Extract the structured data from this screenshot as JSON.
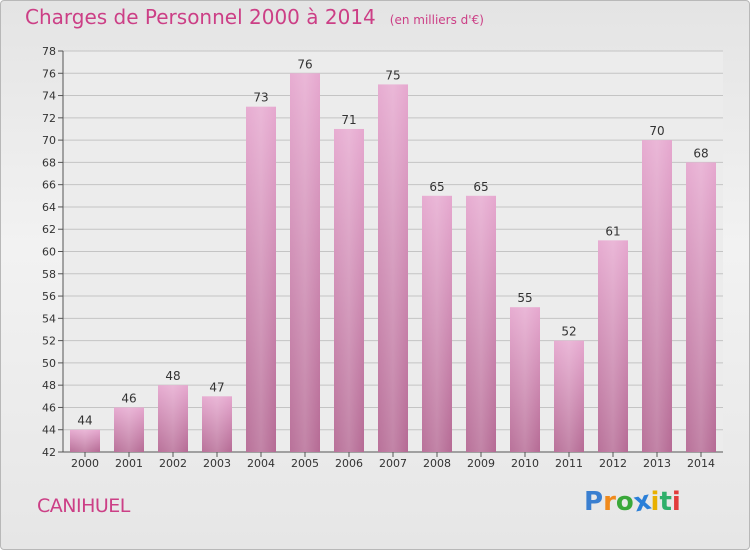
{
  "title": "Charges de Personnel 2000 à 2014",
  "unit_note": "(en milliers d'€)",
  "commune": "CANIHUEL",
  "logo": {
    "letters": [
      "P",
      "r",
      "o",
      "x",
      "i",
      "t",
      "i"
    ],
    "colors": [
      "#3a7fd0",
      "#f08a1c",
      "#3aa83a",
      "#2a7fd8",
      "#e8b000",
      "#2faf6a",
      "#e23c3c"
    ]
  },
  "colors": {
    "bar": "#d690bb",
    "accent": "#cc3f86"
  },
  "chart_data": {
    "type": "bar",
    "categories": [
      "2000",
      "2001",
      "2002",
      "2003",
      "2004",
      "2005",
      "2006",
      "2007",
      "2008",
      "2009",
      "2010",
      "2011",
      "2012",
      "2013",
      "2014"
    ],
    "values": [
      44,
      46,
      48,
      47,
      73,
      76,
      71,
      75,
      65,
      65,
      55,
      52,
      61,
      70,
      68
    ],
    "data_labels": [
      "44",
      "46",
      "48",
      "47",
      "73",
      "76",
      "71",
      "75",
      "65",
      "65",
      "55",
      "52",
      "61",
      "70",
      "68"
    ],
    "ylim": [
      42,
      78
    ],
    "yticks": [
      "42",
      "44",
      "46",
      "48",
      "50",
      "52",
      "54",
      "56",
      "58",
      "60",
      "62",
      "64",
      "66",
      "68",
      "70",
      "72",
      "74",
      "76",
      "78"
    ],
    "grid": true,
    "title": "Charges de Personnel 2000 à 2014",
    "xlabel": "",
    "ylabel": ""
  }
}
